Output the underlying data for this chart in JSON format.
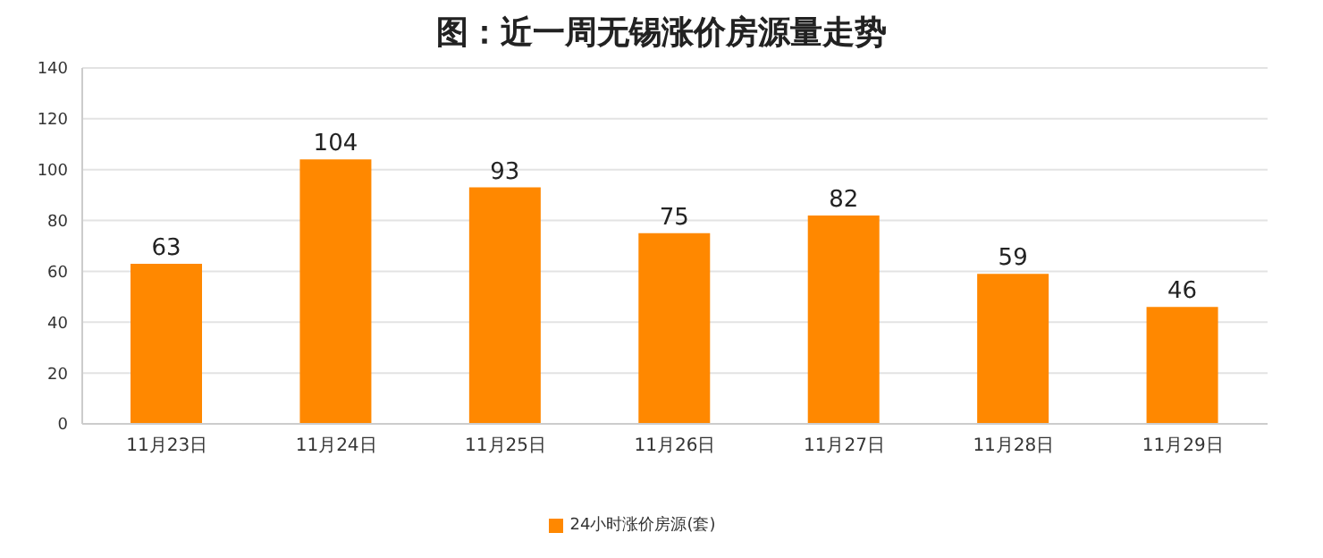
{
  "chart_data": {
    "type": "bar",
    "title": "图：近一周无锡涨价房源量走势",
    "categories": [
      "11月23日",
      "11月24日",
      "11月25日",
      "11月26日",
      "11月27日",
      "11月28日",
      "11月29日"
    ],
    "series": [
      {
        "name": "24小时涨价房源(套)",
        "color": "#ff8800",
        "values": [
          63,
          104,
          93,
          75,
          82,
          59,
          46
        ]
      }
    ],
    "ylim": [
      0,
      140
    ],
    "yticks": [
      0,
      20,
      40,
      60,
      80,
      100,
      120,
      140
    ],
    "grid": "y",
    "legend": "bottom",
    "data_labels": true
  }
}
